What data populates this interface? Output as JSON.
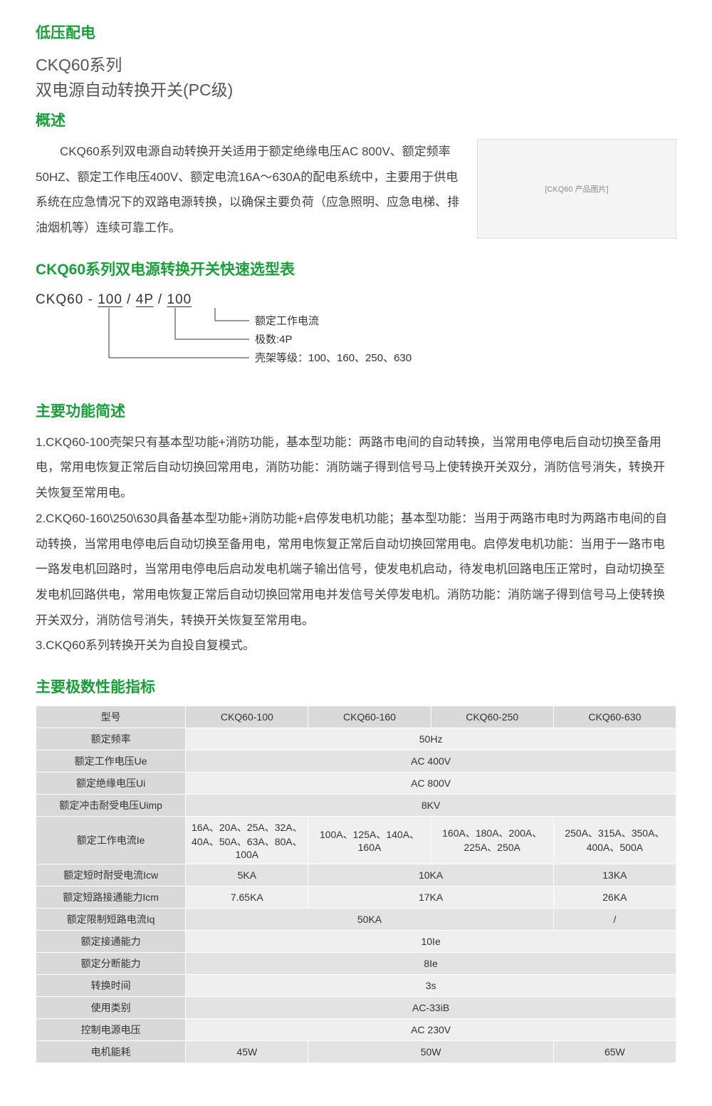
{
  "title_section": "低压配电",
  "series_line1": "CKQ60系列",
  "series_line2": "双电源自动转换开关(PC级)",
  "overview_heading": "概述",
  "overview_text": "CKQ60系列双电源自动转换开关适用于额定绝缘电压AC 800V、额定频率50HZ、额定工作电压400V、额定电流16A～630A的配电系统中，主要用于供电系统在应急情况下的双路电源转换，以确保主要负荷（应急照明、应急电梯、排油烟机等）连续可靠工作。",
  "product_image_label": "[CKQ60 产品图片]",
  "selection_heading": "CKQ60系列双电源转换开关快速选型表",
  "model_diagram": {
    "prefix": "CKQ60 - ",
    "p1": "100",
    "sep1": "   /   ",
    "p2": "4P",
    "sep2": "   /   ",
    "p3": "100",
    "label1": "额定工作电流",
    "label2": "极数:4P",
    "label3": "壳架等级：100、160、250、630",
    "line_color": "#333333",
    "label_fontsize": 15
  },
  "features_heading": "主要功能简述",
  "features": [
    "1.CKQ60-100壳架只有基本型功能+消防功能，基本型功能：两路市电间的自动转换，当常用电停电后自动切换至备用电，常用电恢复正常后自动切换回常用电，消防功能：消防端子得到信号马上使转换开关双分，消防信号消失，转换开关恢复至常用电。",
    "2.CKQ60-160\\250\\630具备基本型功能+消防功能+启停发电机功能；基本型功能：当用于两路市电时为两路市电间的自动转换，当常用电停电后自动切换至备用电，常用电恢复正常后自动切换回常用电。启停发电机功能：当用于一路市电一路发电机回路时，当常用电停电后启动发电机端子输出信号，使发电机启动，待发电机回路电压正常时，自动切换至发电机回路供电，常用电恢复正常后自动切换回常用电并发信号关停发电机。消防功能：消防端子得到信号马上使转换开关双分，消防信号消失，转换开关恢复至常用电。",
    "3.CKQ60系列转换开关为自投自复模式。"
  ],
  "spec_heading": "主要极数性能指标",
  "spec_table": {
    "header_bg": "#d9d9d9",
    "row_odd_bg": "#efefef",
    "row_even_bg": "#e3e3e3",
    "border_color": "#ffffff",
    "columns": [
      "型号",
      "CKQ60-100",
      "CKQ60-160",
      "CKQ60-250",
      "CKQ60-630"
    ],
    "rows": [
      {
        "label": "额定频率",
        "cells": [
          {
            "span": 4,
            "text": "50Hz"
          }
        ]
      },
      {
        "label": "额定工作电压Ue",
        "cells": [
          {
            "span": 4,
            "text": "AC 400V"
          }
        ]
      },
      {
        "label": "额定绝缘电压Ui",
        "cells": [
          {
            "span": 4,
            "text": "AC 800V"
          }
        ]
      },
      {
        "label": "额定冲击耐受电压Uimp",
        "cells": [
          {
            "span": 4,
            "text": "8KV"
          }
        ]
      },
      {
        "label": "额定工作电流Ie",
        "tall": true,
        "cells": [
          {
            "span": 1,
            "text": "16A、20A、25A、32A、40A、50A、63A、80A、100A"
          },
          {
            "span": 1,
            "text": "100A、125A、140A、160A"
          },
          {
            "span": 1,
            "text": "160A、180A、200A、225A、250A"
          },
          {
            "span": 1,
            "text": "250A、315A、350A、400A、500A"
          }
        ]
      },
      {
        "label": "额定短时耐受电流Icw",
        "cells": [
          {
            "span": 1,
            "text": "5KA"
          },
          {
            "span": 2,
            "text": "10KA"
          },
          {
            "span": 1,
            "text": "13KA"
          }
        ]
      },
      {
        "label": "额定短路接通能力Icm",
        "cells": [
          {
            "span": 1,
            "text": "7.65KA"
          },
          {
            "span": 2,
            "text": "17KA"
          },
          {
            "span": 1,
            "text": "26KA"
          }
        ]
      },
      {
        "label": "额定限制短路电流Iq",
        "cells": [
          {
            "span": 3,
            "text": "50KA"
          },
          {
            "span": 1,
            "text": "/"
          }
        ]
      },
      {
        "label": "额定接通能力",
        "cells": [
          {
            "span": 4,
            "text": "10Ie"
          }
        ]
      },
      {
        "label": "额定分断能力",
        "cells": [
          {
            "span": 4,
            "text": "8Ie"
          }
        ]
      },
      {
        "label": "转换时间",
        "cells": [
          {
            "span": 4,
            "text": "3s"
          }
        ]
      },
      {
        "label": "使用类别",
        "cells": [
          {
            "span": 4,
            "text": "AC-33iB"
          }
        ]
      },
      {
        "label": "控制电源电压",
        "cells": [
          {
            "span": 4,
            "text": "AC 230V"
          }
        ]
      },
      {
        "label": "电机能耗",
        "cells": [
          {
            "span": 1,
            "text": "45W"
          },
          {
            "span": 2,
            "text": "50W"
          },
          {
            "span": 1,
            "text": "65W"
          }
        ]
      }
    ]
  }
}
